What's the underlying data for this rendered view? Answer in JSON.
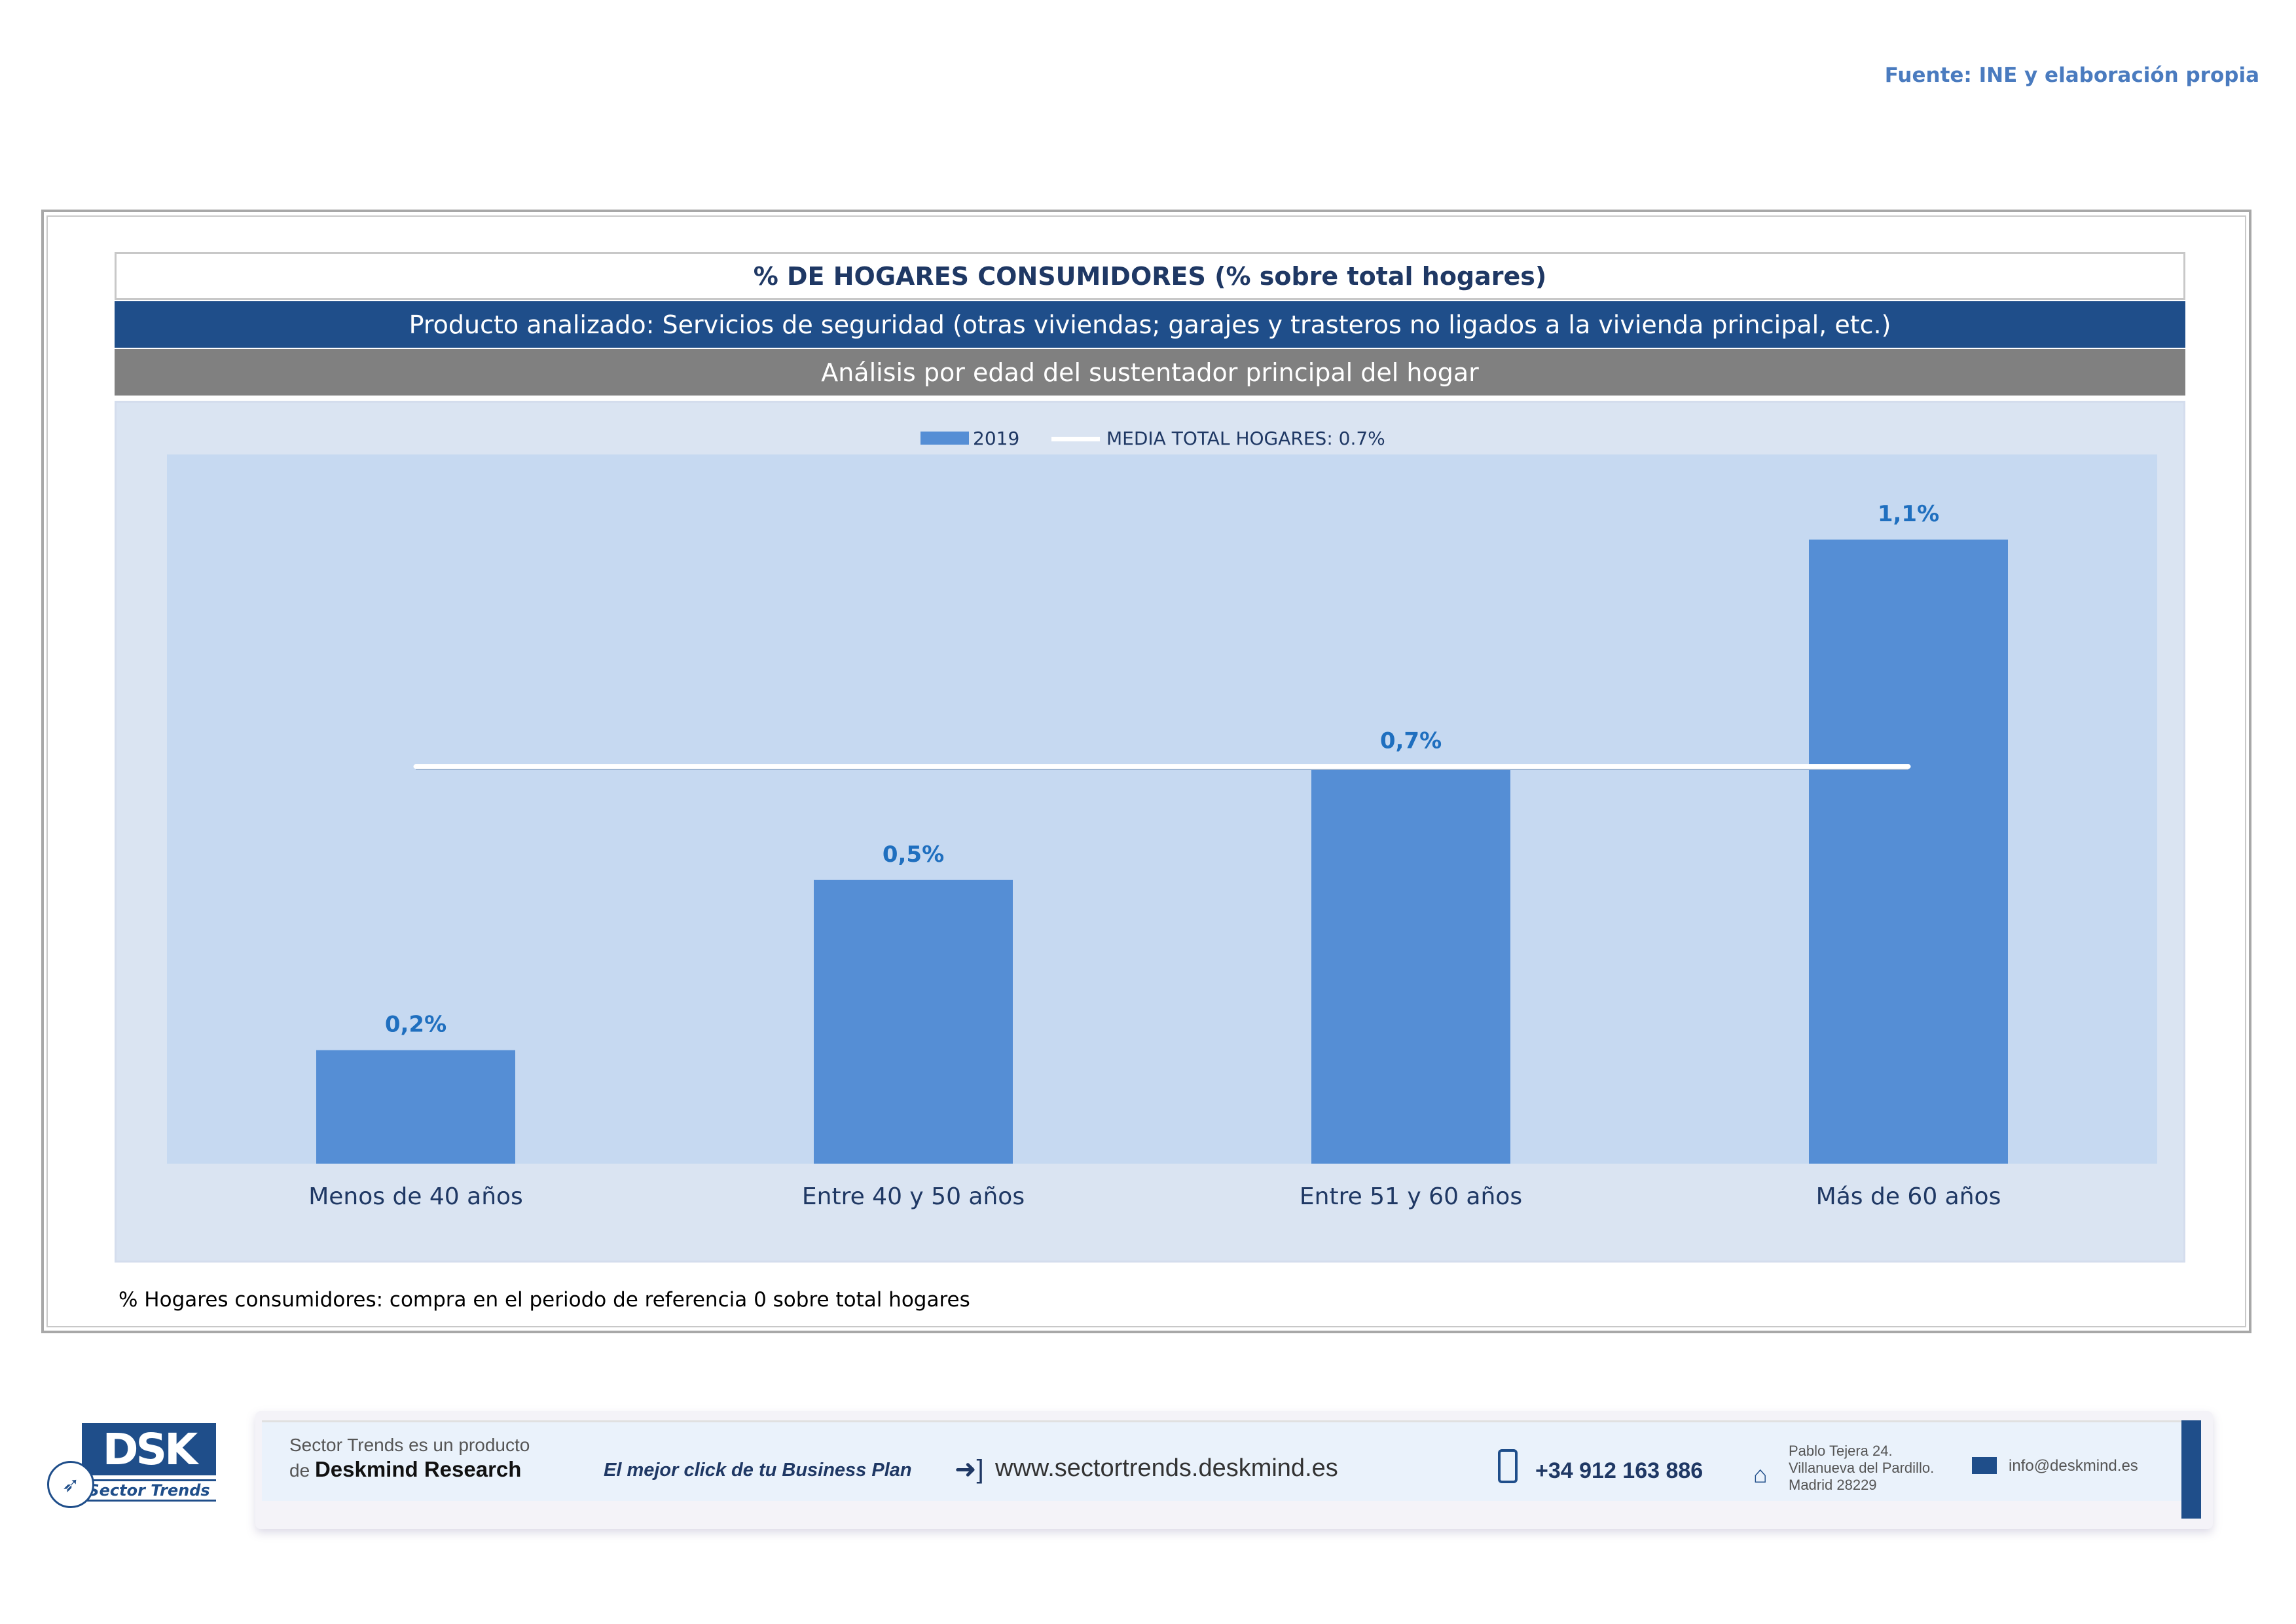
{
  "source_text": "Fuente: INE y elaboración propia",
  "header": {
    "title": "% DE HOGARES CONSUMIDORES (% sobre total hogares)",
    "product": "Producto analizado: Servicios de seguridad (otras viviendas; garajes y trasteros no ligados a la vivienda principal, etc.)",
    "analysis": "Análisis por edad del sustentador principal del hogar"
  },
  "chart_data": {
    "type": "bar",
    "categories": [
      "Menos de 40 años",
      "Entre 40 y 50 años",
      "Entre 51  y 60 años",
      "Más de 60 años"
    ],
    "series": [
      {
        "name": "2019",
        "values": [
          0.2,
          0.5,
          0.7,
          1.1
        ],
        "labels": [
          "0,2%",
          "0,5%",
          "0,7%",
          "1,1%"
        ],
        "color": "#558ed5"
      }
    ],
    "reference_line": {
      "name": "MEDIA TOTAL  HOGARES:  0.7%",
      "value": 0.7,
      "color": "#ffffff"
    },
    "ylim": [
      0,
      1.25
    ],
    "grid": false,
    "legend_position": "top-center",
    "plot_background": "#c6d9f1",
    "label_color": "#1f6fbf",
    "tick_color": "#1f3864"
  },
  "note": "% Hogares consumidores: compra en el periodo de referencia 0 sobre total hogares",
  "footer": {
    "logo_text": "DSK",
    "logo_sub": "Sector Trends",
    "product_line1": "Sector Trends es un producto",
    "product_line2_prefix": "de",
    "product_line2_brand": "Deskmind Research",
    "slogan": "El mejor click de tu Business Plan",
    "website": "www.sectortrends.deskmind.es",
    "phone": "+34 912 163 886",
    "address": [
      "Pablo Tejera 24.",
      "Villanueva del Pardillo.",
      "Madrid 28229"
    ],
    "email": "info@deskmind.es"
  }
}
